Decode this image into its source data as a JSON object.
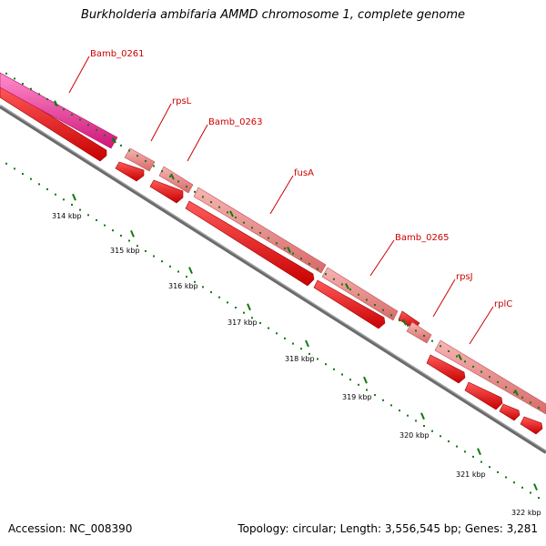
{
  "title": "Burkholderia ambifaria AMMD chromosome 1, complete genome",
  "footer": {
    "accession": "Accession: NC_008390",
    "summary": "Topology: circular; Length: 3,556,545 bp; Genes: 3,281"
  },
  "scale": {
    "ticks": [
      "314 kbp",
      "315 kbp",
      "316 kbp",
      "317 kbp",
      "318 kbp",
      "319 kbp",
      "320 kbp",
      "321 kbp",
      "322 kbp"
    ]
  },
  "genes": [
    {
      "label": "Bamb_0261",
      "color": "#ee1d8d"
    },
    {
      "label": "rpsL",
      "color": "#f08a8a"
    },
    {
      "label": "Bamb_0263",
      "color": "#f08a8a"
    },
    {
      "label": "fusA",
      "color": "#f08a8a"
    },
    {
      "label": "Bamb_0265",
      "color": "#f08a8a"
    },
    {
      "label": "rpsJ",
      "color": "#f08a8a"
    },
    {
      "label": "rplC",
      "color": "#f08a8a"
    }
  ],
  "colors": {
    "label_red": "#cc0000",
    "cds_red": "#ee0000",
    "tick_green": "#107a10",
    "backbone": "#777777"
  }
}
